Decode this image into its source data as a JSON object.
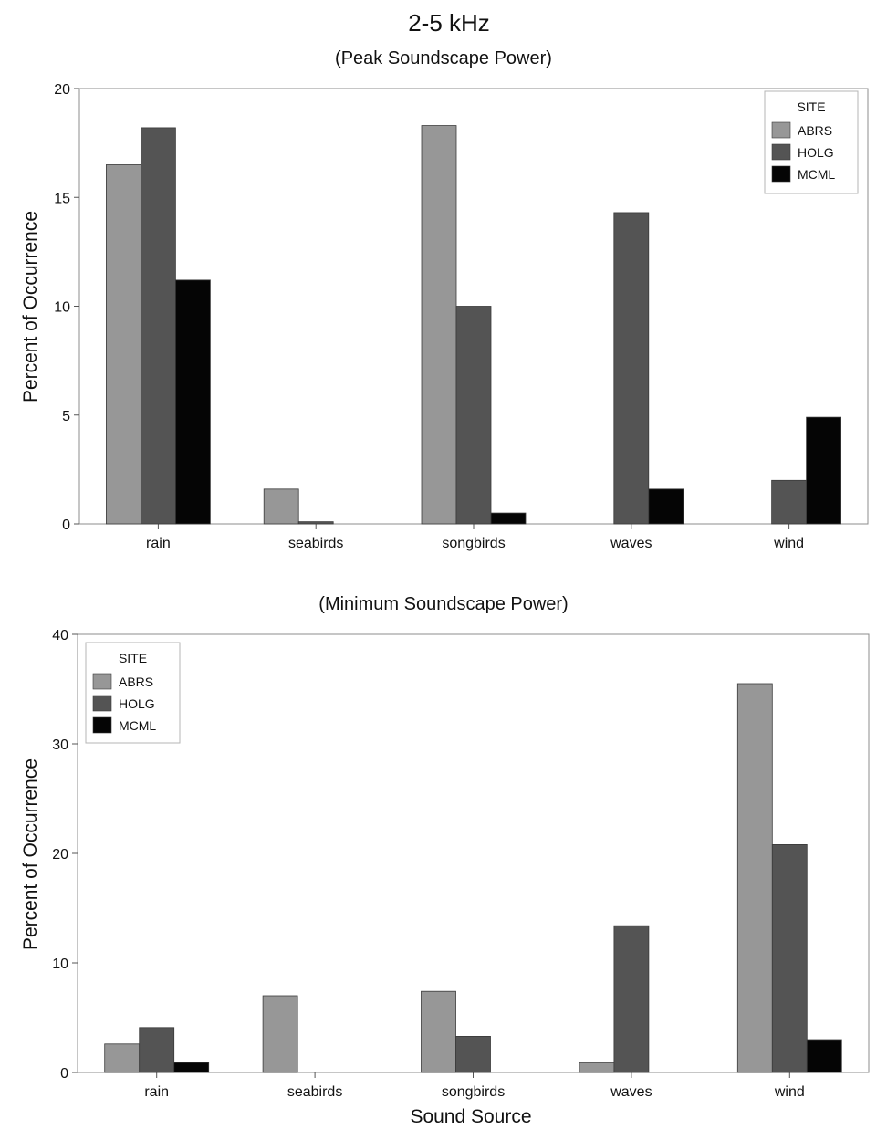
{
  "figure_title": "2-5 kHz",
  "colors": {
    "ABRS": "#979797",
    "HOLG": "#545454",
    "MCML": "#050505"
  },
  "chart_data": [
    {
      "type": "bar",
      "title": "(Peak Soundscape Power)",
      "xlabel": "",
      "ylabel": "Percent of Occurrence",
      "categories": [
        "rain",
        "seabirds",
        "songbirds",
        "waves",
        "wind"
      ],
      "ylim": [
        0,
        20
      ],
      "yticks": [
        0,
        5,
        10,
        15,
        20
      ],
      "legend": {
        "title": "SITE",
        "position": "top-right"
      },
      "series": [
        {
          "name": "ABRS",
          "values": [
            16.5,
            1.6,
            18.3,
            0,
            0
          ]
        },
        {
          "name": "HOLG",
          "values": [
            18.2,
            0.1,
            10.0,
            14.3,
            2.0
          ]
        },
        {
          "name": "MCML",
          "values": [
            11.2,
            0,
            0.5,
            1.6,
            4.9
          ]
        }
      ]
    },
    {
      "type": "bar",
      "title": "(Minimum Soundscape Power)",
      "xlabel": "Sound Source",
      "ylabel": "Percent of Occurrence",
      "categories": [
        "rain",
        "seabirds",
        "songbirds",
        "waves",
        "wind"
      ],
      "ylim": [
        0,
        40
      ],
      "yticks": [
        0,
        10,
        20,
        30,
        40
      ],
      "legend": {
        "title": "SITE",
        "position": "top-left"
      },
      "series": [
        {
          "name": "ABRS",
          "values": [
            2.6,
            7.0,
            7.4,
            0.9,
            35.5
          ]
        },
        {
          "name": "HOLG",
          "values": [
            4.1,
            0,
            3.3,
            13.4,
            20.8
          ]
        },
        {
          "name": "MCML",
          "values": [
            0.9,
            0,
            0,
            0,
            3.0
          ]
        }
      ]
    }
  ]
}
